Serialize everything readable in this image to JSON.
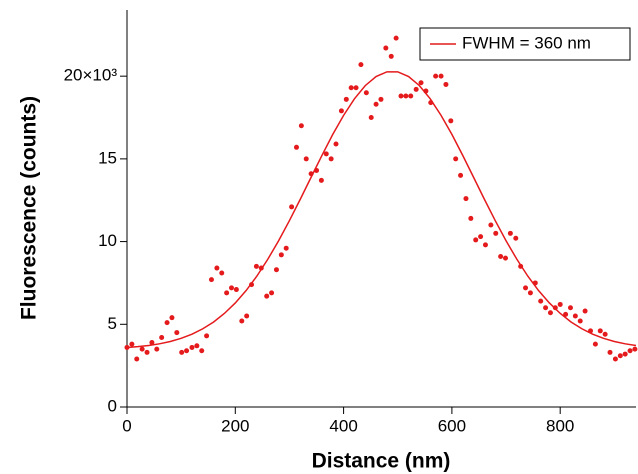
{
  "chart_data": {
    "type": "scatter",
    "xlabel": "Distance (nm)",
    "ylabel": "Fluorescence (counts)",
    "xlim": [
      0,
      940
    ],
    "xticks": [
      0,
      200,
      400,
      600,
      800
    ],
    "ylim": [
      0,
      24
    ],
    "yticks": [
      0,
      5,
      10,
      15,
      {
        "value": 20,
        "label": "20×10³"
      }
    ],
    "legend": "upper right",
    "series": [
      {
        "type": "scatter",
        "color": "#e41a1c",
        "x": [
          0,
          9,
          18,
          28,
          37,
          46,
          55,
          64,
          74,
          83,
          92,
          101,
          110,
          120,
          129,
          138,
          147,
          156,
          166,
          175,
          184,
          193,
          202,
          212,
          221,
          230,
          239,
          248,
          258,
          267,
          276,
          285,
          294,
          304,
          313,
          322,
          331,
          340,
          350,
          359,
          368,
          377,
          386,
          396,
          405,
          414,
          423,
          432,
          442,
          451,
          460,
          469,
          478,
          488,
          497,
          506,
          515,
          524,
          534,
          543,
          552,
          561,
          570,
          580,
          589,
          598,
          607,
          616,
          626,
          635,
          644,
          653,
          662,
          672,
          681,
          690,
          699,
          708,
          718,
          727,
          736,
          745,
          754,
          764,
          773,
          782,
          791,
          800,
          810,
          819,
          828,
          837,
          846,
          856,
          865,
          874,
          883,
          892,
          902,
          911,
          920,
          929,
          938
        ],
        "values": [
          3.6,
          3.8,
          2.9,
          3.5,
          3.3,
          3.9,
          3.5,
          4.2,
          5.1,
          5.4,
          4.5,
          3.3,
          3.4,
          3.6,
          3.7,
          3.4,
          4.3,
          7.7,
          8.4,
          8.1,
          6.9,
          7.2,
          7.1,
          5.2,
          5.5,
          7.4,
          8.5,
          8.4,
          6.7,
          6.9,
          8.3,
          9.2,
          9.6,
          12.1,
          15.7,
          17.0,
          15.0,
          14.1,
          14.3,
          13.7,
          15.3,
          15.0,
          15.9,
          17.9,
          18.6,
          19.3,
          19.3,
          20.7,
          19.0,
          17.5,
          18.3,
          18.6,
          21.7,
          21.2,
          22.3,
          18.8,
          18.8,
          18.8,
          19.2,
          19.6,
          19.1,
          18.4,
          20.0,
          20.0,
          19.5,
          17.3,
          15.0,
          14.0,
          12.6,
          11.4,
          10.1,
          10.3,
          9.8,
          11.0,
          10.5,
          9.1,
          9.0,
          10.5,
          10.2,
          8.5,
          7.2,
          6.9,
          7.5,
          6.4,
          6.0,
          5.7,
          6.0,
          6.2,
          5.6,
          6.0,
          5.5,
          5.2,
          5.8,
          4.6,
          3.8,
          4.6,
          4.4,
          3.3,
          2.9,
          3.1,
          3.2,
          3.4,
          3.5
        ]
      },
      {
        "type": "line",
        "name": "FWHM = 360 nm",
        "color": "#e41a1c",
        "x": [
          0,
          20,
          40,
          60,
          80,
          100,
          120,
          140,
          160,
          180,
          200,
          220,
          240,
          260,
          280,
          300,
          320,
          340,
          360,
          380,
          400,
          420,
          440,
          460,
          480,
          500,
          520,
          540,
          560,
          580,
          600,
          620,
          640,
          660,
          680,
          700,
          720,
          740,
          760,
          780,
          800,
          820,
          840,
          860,
          880,
          900,
          920,
          940
        ],
        "values": [
          3.6,
          3.65,
          3.72,
          3.82,
          3.96,
          4.15,
          4.4,
          4.73,
          5.14,
          5.66,
          6.29,
          7.04,
          7.92,
          8.93,
          10.05,
          11.27,
          12.56,
          13.89,
          15.21,
          16.48,
          17.63,
          18.63,
          19.43,
          19.98,
          20.26,
          20.26,
          19.98,
          19.43,
          18.63,
          17.63,
          16.48,
          15.21,
          13.89,
          12.56,
          11.27,
          10.05,
          8.93,
          7.92,
          7.04,
          6.29,
          5.66,
          5.14,
          4.73,
          4.4,
          4.15,
          3.96,
          3.82,
          3.72
        ]
      }
    ]
  }
}
